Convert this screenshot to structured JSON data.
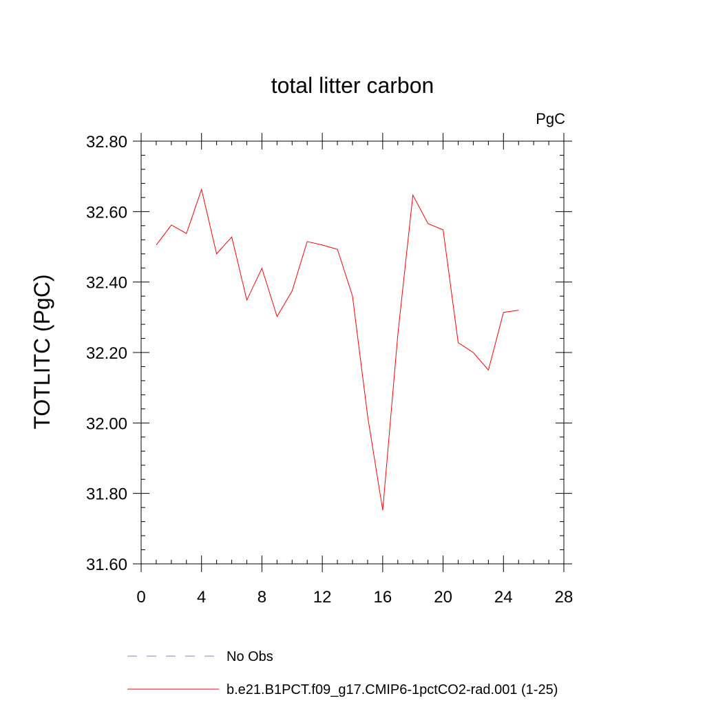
{
  "chart_data": {
    "type": "line",
    "title": "total litter carbon",
    "units_label": "PgC",
    "ylabel": "TOTLITC  (PgC)",
    "xlabel": "",
    "xlim": [
      0,
      28
    ],
    "ylim": [
      31.6,
      32.8
    ],
    "x_ticks": [
      0,
      4,
      8,
      12,
      16,
      20,
      24,
      28
    ],
    "x_tick_labels": [
      "0",
      "4",
      "8",
      "12",
      "16",
      "20",
      "24",
      "28"
    ],
    "y_ticks": [
      31.6,
      31.8,
      32.0,
      32.2,
      32.4,
      32.6,
      32.8
    ],
    "y_tick_labels": [
      "31.60",
      "31.80",
      "32.00",
      "32.20",
      "32.40",
      "32.60",
      "32.80"
    ],
    "grid": false,
    "legend_position": "bottom",
    "series": [
      {
        "name": "No Obs",
        "style": "dashed",
        "color": "#8080c0",
        "x": [],
        "values": []
      },
      {
        "name": "b.e21.B1PCT.f09_g17.CMIP6-1pctCO2-rad.001 (1-25)",
        "style": "solid",
        "color": "#ff0000",
        "x": [
          1,
          2,
          3,
          4,
          5,
          6,
          7,
          8,
          9,
          10,
          11,
          12,
          13,
          14,
          15,
          16,
          17,
          18,
          19,
          20,
          21,
          22,
          23,
          24,
          25
        ],
        "values": [
          32.505,
          32.562,
          32.538,
          32.663,
          32.48,
          32.528,
          32.349,
          32.439,
          32.302,
          32.375,
          32.515,
          32.505,
          32.493,
          32.36,
          32.02,
          31.752,
          32.25,
          32.647,
          32.566,
          32.548,
          32.228,
          32.2,
          32.15,
          32.314,
          32.32
        ]
      }
    ]
  }
}
